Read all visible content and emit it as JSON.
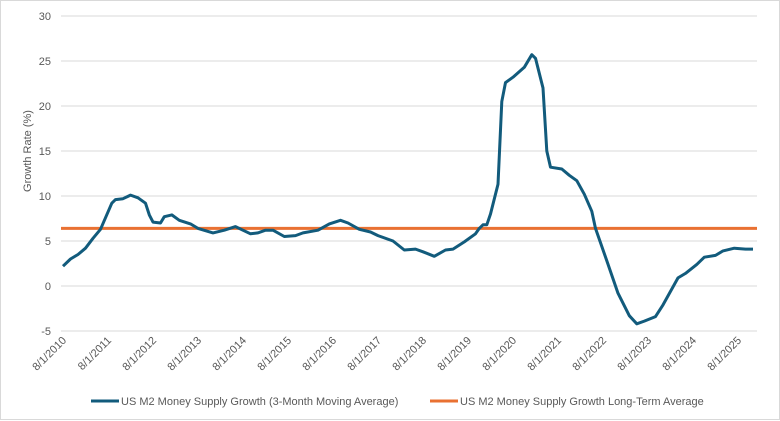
{
  "chart_data": {
    "type": "line",
    "title": "",
    "xlabel": "",
    "ylabel": "Growth Rate (%)",
    "ylim": [
      -5,
      30
    ],
    "yticks": [
      -5,
      0,
      5,
      10,
      15,
      20,
      25,
      30
    ],
    "xticks": [
      "8/1/2010",
      "8/1/2011",
      "8/1/2012",
      "8/1/2013",
      "8/1/2014",
      "8/1/2015",
      "8/1/2016",
      "8/1/2017",
      "8/1/2018",
      "8/1/2019",
      "8/1/2020",
      "8/1/2021",
      "8/1/2022",
      "8/1/2023",
      "8/1/2024",
      "8/1/2025"
    ],
    "xrange": [
      "2010-08",
      "2025-12"
    ],
    "grid": "horizontal",
    "legend_position": "bottom",
    "series": [
      {
        "name": "US M2 Money Supply Growth (3-Month Moving Average)",
        "color": "#125b7c",
        "points": [
          [
            "2010-08",
            2.2
          ],
          [
            "2010-10",
            3.0
          ],
          [
            "2010-12",
            3.5
          ],
          [
            "2011-02",
            4.2
          ],
          [
            "2011-04",
            5.3
          ],
          [
            "2011-06",
            6.3
          ],
          [
            "2011-09",
            9.2
          ],
          [
            "2011-10",
            9.6
          ],
          [
            "2011-12",
            9.7
          ],
          [
            "2012-02",
            10.1
          ],
          [
            "2012-04",
            9.8
          ],
          [
            "2012-06",
            9.2
          ],
          [
            "2012-07",
            7.9
          ],
          [
            "2012-08",
            7.1
          ],
          [
            "2012-10",
            7.0
          ],
          [
            "2012-11",
            7.7
          ],
          [
            "2013-01",
            7.9
          ],
          [
            "2013-03",
            7.3
          ],
          [
            "2013-06",
            6.9
          ],
          [
            "2013-08",
            6.4
          ],
          [
            "2013-12",
            5.9
          ],
          [
            "2014-03",
            6.2
          ],
          [
            "2014-06",
            6.6
          ],
          [
            "2014-10",
            5.8
          ],
          [
            "2014-12",
            5.9
          ],
          [
            "2015-02",
            6.2
          ],
          [
            "2015-04",
            6.2
          ],
          [
            "2015-07",
            5.5
          ],
          [
            "2015-10",
            5.6
          ],
          [
            "2015-12",
            5.9
          ],
          [
            "2016-04",
            6.2
          ],
          [
            "2016-07",
            6.9
          ],
          [
            "2016-10",
            7.3
          ],
          [
            "2016-12",
            7.0
          ],
          [
            "2017-03",
            6.3
          ],
          [
            "2017-06",
            6.0
          ],
          [
            "2017-08",
            5.6
          ],
          [
            "2017-12",
            5.0
          ],
          [
            "2018-03",
            4.0
          ],
          [
            "2018-06",
            4.1
          ],
          [
            "2018-08",
            3.8
          ],
          [
            "2018-11",
            3.3
          ],
          [
            "2019-02",
            4.0
          ],
          [
            "2019-04",
            4.1
          ],
          [
            "2019-07",
            4.9
          ],
          [
            "2019-10",
            5.8
          ],
          [
            "2019-11",
            6.4
          ],
          [
            "2019-12",
            6.8
          ],
          [
            "2020-01",
            6.8
          ],
          [
            "2020-02",
            8.0
          ],
          [
            "2020-04",
            11.3
          ],
          [
            "2020-05",
            20.5
          ],
          [
            "2020-06",
            22.6
          ],
          [
            "2020-08",
            23.2
          ],
          [
            "2020-11",
            24.3
          ],
          [
            "2021-01",
            25.7
          ],
          [
            "2021-02",
            25.3
          ],
          [
            "2021-04",
            22.0
          ],
          [
            "2021-05",
            15.0
          ],
          [
            "2021-06",
            13.2
          ],
          [
            "2021-09",
            13.0
          ],
          [
            "2021-11",
            12.3
          ],
          [
            "2022-01",
            11.7
          ],
          [
            "2022-03",
            10.2
          ],
          [
            "2022-05",
            8.3
          ],
          [
            "2022-06",
            6.4
          ],
          [
            "2022-07",
            5.2
          ],
          [
            "2022-09",
            2.8
          ],
          [
            "2022-12",
            -0.8
          ],
          [
            "2023-03",
            -3.3
          ],
          [
            "2023-05",
            -4.2
          ],
          [
            "2023-07",
            -3.9
          ],
          [
            "2023-10",
            -3.4
          ],
          [
            "2023-12",
            -2.1
          ],
          [
            "2024-02",
            -0.6
          ],
          [
            "2024-04",
            0.9
          ],
          [
            "2024-06",
            1.4
          ],
          [
            "2024-09",
            2.4
          ],
          [
            "2024-11",
            3.2
          ],
          [
            "2025-02",
            3.4
          ],
          [
            "2025-04",
            3.9
          ],
          [
            "2025-07",
            4.2
          ],
          [
            "2025-10",
            4.1
          ],
          [
            "2025-12",
            4.1
          ]
        ]
      },
      {
        "name": "US M2 Money Supply Growth Long-Term Average",
        "color": "#e97132",
        "constant": 6.4
      }
    ]
  }
}
